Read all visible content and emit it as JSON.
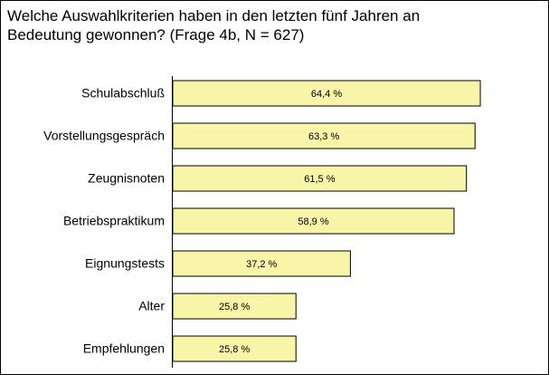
{
  "chart_data": {
    "type": "hbar",
    "title": [
      "Welche Auswahlkriterien haben in den letzten fünf Jahren an",
      "Bedeutung gewonnen? (Frage 4b, N = 627)"
    ],
    "categories": [
      "Schulabschluß",
      "Vorstellungsgespräch",
      "Zeugnisnoten",
      "Betriebspraktikum",
      "Eignungstests",
      "Alter",
      "Empfehlungen"
    ],
    "values": [
      64.4,
      63.3,
      61.5,
      58.9,
      37.2,
      25.8,
      25.8
    ],
    "value_labels": [
      "64,4 %",
      "63,3 %",
      "61,5 %",
      "58,9 %",
      "37,2 %",
      "25,8 %",
      "25,8 %"
    ],
    "color": "#f8f4a8"
  }
}
